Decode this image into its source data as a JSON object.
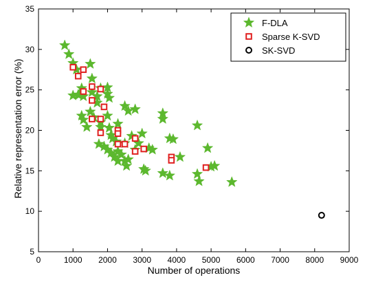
{
  "chart_data": {
    "type": "scatter",
    "xlabel": "Number of operations",
    "ylabel": "Relative representation error (%)",
    "xlim": [
      0,
      9000
    ],
    "ylim": [
      5,
      35
    ],
    "xticks": [
      0,
      1000,
      2000,
      3000,
      4000,
      5000,
      6000,
      7000,
      8000,
      9000
    ],
    "yticks": [
      5,
      10,
      15,
      20,
      25,
      30,
      35
    ],
    "grid": false,
    "legend_position": "top-right",
    "series": [
      {
        "name": "F-DLA",
        "marker": "star",
        "color": "#5cb82e",
        "points": [
          [
            760,
            30.5
          ],
          [
            880,
            29.4
          ],
          [
            1000,
            28.3
          ],
          [
            1000,
            24.3
          ],
          [
            1100,
            27.5
          ],
          [
            1150,
            24.4
          ],
          [
            1180,
            24.4
          ],
          [
            1250,
            25.2
          ],
          [
            1300,
            24.2
          ],
          [
            1250,
            21.8
          ],
          [
            1300,
            21.3
          ],
          [
            1400,
            20.4
          ],
          [
            1500,
            28.2
          ],
          [
            1550,
            26.4
          ],
          [
            1550,
            24.7
          ],
          [
            1500,
            22.3
          ],
          [
            1600,
            21.6
          ],
          [
            1700,
            24.2
          ],
          [
            1700,
            23.4
          ],
          [
            1800,
            25.2
          ],
          [
            1800,
            21.0
          ],
          [
            1800,
            20.4
          ],
          [
            1750,
            18.3
          ],
          [
            1900,
            18.0
          ],
          [
            2000,
            25.3
          ],
          [
            2000,
            24.5
          ],
          [
            2050,
            24.0
          ],
          [
            2000,
            21.8
          ],
          [
            2050,
            20.3
          ],
          [
            2100,
            19.4
          ],
          [
            2150,
            19.0
          ],
          [
            2000,
            17.6
          ],
          [
            2100,
            17.2
          ],
          [
            2300,
            20.8
          ],
          [
            2250,
            18.6
          ],
          [
            2300,
            17.4
          ],
          [
            2200,
            16.7
          ],
          [
            2300,
            16.2
          ],
          [
            2400,
            17.0
          ],
          [
            2500,
            23.0
          ],
          [
            2600,
            22.4
          ],
          [
            2500,
            18.4
          ],
          [
            2500,
            16.2
          ],
          [
            2550,
            15.6
          ],
          [
            2600,
            16.4
          ],
          [
            2800,
            22.6
          ],
          [
            2700,
            19.3
          ],
          [
            2800,
            17.6
          ],
          [
            2900,
            18.4
          ],
          [
            3000,
            19.6
          ],
          [
            3050,
            15.2
          ],
          [
            3100,
            15.0
          ],
          [
            3200,
            17.8
          ],
          [
            3300,
            17.6
          ],
          [
            3600,
            22.1
          ],
          [
            3600,
            21.4
          ],
          [
            3600,
            14.7
          ],
          [
            3800,
            19.0
          ],
          [
            3900,
            18.9
          ],
          [
            3800,
            14.4
          ],
          [
            4100,
            16.7
          ],
          [
            4600,
            20.6
          ],
          [
            4600,
            14.6
          ],
          [
            4650,
            13.7
          ],
          [
            4900,
            17.8
          ],
          [
            5000,
            15.5
          ],
          [
            5100,
            15.6
          ],
          [
            5600,
            13.6
          ]
        ]
      },
      {
        "name": "Sparse K-SVD",
        "marker": "square",
        "color": "#e01f1f",
        "points": [
          [
            1000,
            27.8
          ],
          [
            1150,
            26.7
          ],
          [
            1300,
            27.5
          ],
          [
            1300,
            24.8
          ],
          [
            1550,
            25.4
          ],
          [
            1550,
            23.7
          ],
          [
            1550,
            21.4
          ],
          [
            1800,
            25.1
          ],
          [
            1800,
            21.4
          ],
          [
            1800,
            19.7
          ],
          [
            1900,
            22.9
          ],
          [
            2300,
            20.0
          ],
          [
            2300,
            19.6
          ],
          [
            2300,
            18.3
          ],
          [
            2500,
            18.3
          ],
          [
            2800,
            19.0
          ],
          [
            2800,
            17.4
          ],
          [
            3050,
            17.7
          ],
          [
            3850,
            16.7
          ],
          [
            3850,
            16.3
          ],
          [
            4850,
            15.4
          ]
        ]
      },
      {
        "name": "SK-SVD",
        "marker": "circle",
        "color": "#000000",
        "points": [
          [
            8200,
            9.5
          ]
        ]
      }
    ]
  }
}
